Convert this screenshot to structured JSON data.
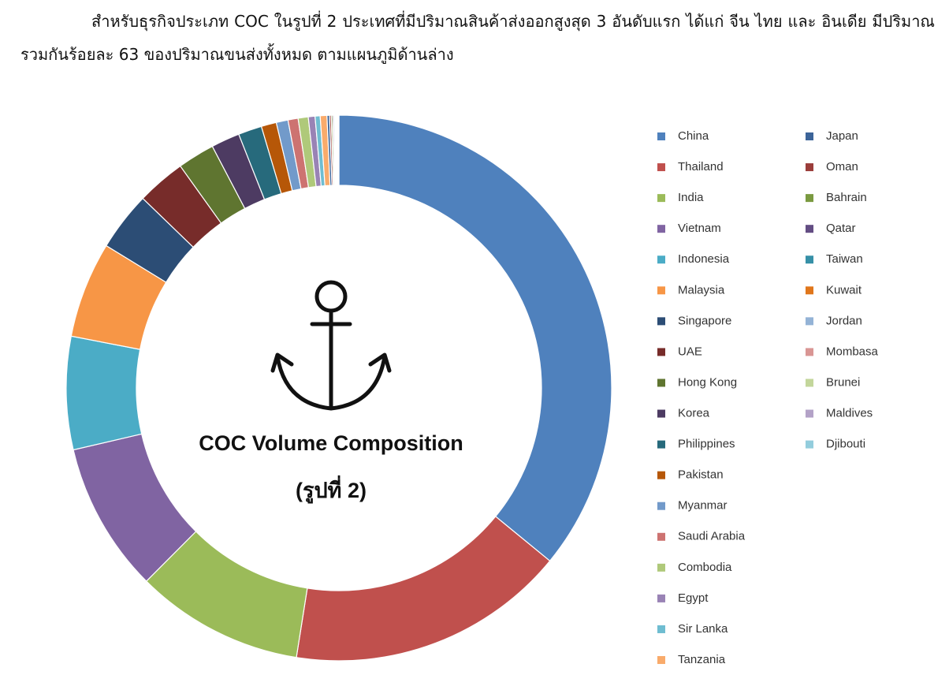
{
  "paragraph": "สำหรับธุรกิจประเภท COC ในรูปที่ 2 ประเทศที่มีปริมาณสินค้าส่งออกสูงสุด 3 อันดับแรก ได้แก่ จีน ไทย และ อินเดีย มีปริมาณรวมกันร้อยละ 63 ของปริมาณขนส่งทั้งหมด ตามแผนภูมิด้านล่าง",
  "chart_data": {
    "type": "donut",
    "title": "COC Volume Composition",
    "subtitle": "(รูปที่ 2)",
    "categories": [
      "China",
      "Thailand",
      "India",
      "Vietnam",
      "Indonesia",
      "Malaysia",
      "Singapore",
      "UAE",
      "Hong Kong",
      "Korea",
      "Philippines",
      "Pakistan",
      "Myanmar",
      "Saudi Arabia",
      "Combodia",
      "Egypt",
      "Sir Lanka",
      "Tanzania",
      "Japan",
      "Oman",
      "Bahrain",
      "Qatar",
      "Taiwan",
      "Kuwait",
      "Jordan",
      "Mombasa",
      "Brunei",
      "Maldives",
      "Djibouti"
    ],
    "values": [
      36,
      16.6,
      10,
      8.9,
      6.7,
      5.7,
      3.5,
      2.9,
      2.2,
      1.7,
      1.4,
      0.9,
      0.7,
      0.6,
      0.6,
      0.4,
      0.3,
      0.4,
      0.15,
      0.1,
      0.08,
      0.07,
      0.06,
      0.05,
      0.05,
      0.04,
      0.04,
      0.03,
      0.03
    ],
    "colors": [
      "#4f81bd",
      "#c0504d",
      "#9bbb59",
      "#8064a2",
      "#4bacc6",
      "#f79646",
      "#2c4d75",
      "#772c2a",
      "#5f7530",
      "#4d3b62",
      "#276a7c",
      "#b65708",
      "#729aca",
      "#cd7371",
      "#afc97a",
      "#9983b5",
      "#6fbdd1",
      "#f9ab6b",
      "#3c6499",
      "#9b3d3a",
      "#7a9a40",
      "#634d83",
      "#3690a7",
      "#e0761b",
      "#94b3d6",
      "#d99694",
      "#c3d69b",
      "#b3a2c7",
      "#93cddd"
    ]
  }
}
